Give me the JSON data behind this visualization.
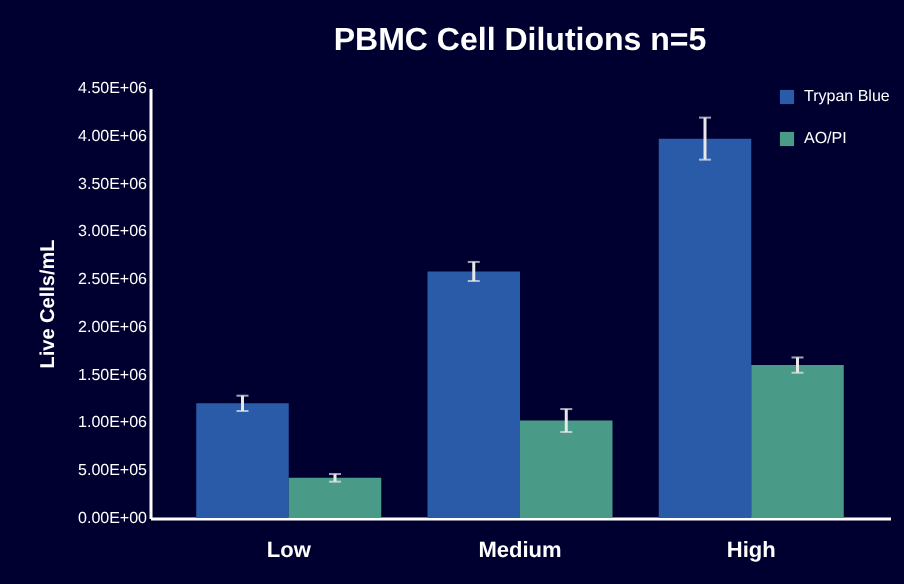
{
  "chart_data": {
    "type": "bar",
    "title": "PBMC Cell Dilutions n=5",
    "ylabel": "Live Cells/mL",
    "categories": [
      "Low",
      "Medium",
      "High"
    ],
    "series": [
      {
        "name": "Trypan Blue",
        "color": "#2a5ba8",
        "values": [
          1200000,
          2580000,
          3970000
        ],
        "errors": [
          80000,
          100000,
          220000
        ]
      },
      {
        "name": "AO/PI",
        "color": "#4a9a88",
        "values": [
          420000,
          1020000,
          1600000
        ],
        "errors": [
          40000,
          120000,
          80000
        ]
      }
    ],
    "ylim": [
      0,
      4500000
    ],
    "yticks": [
      {
        "value": 0,
        "label": "0.00E+00"
      },
      {
        "value": 500000,
        "label": "5.00E+05"
      },
      {
        "value": 1000000,
        "label": "1.00E+06"
      },
      {
        "value": 1500000,
        "label": "1.50E+06"
      },
      {
        "value": 2000000,
        "label": "2.00E+06"
      },
      {
        "value": 2500000,
        "label": "2.50E+06"
      },
      {
        "value": 3000000,
        "label": "3.00E+06"
      },
      {
        "value": 3500000,
        "label": "3.50E+06"
      },
      {
        "value": 4000000,
        "label": "4.00E+06"
      },
      {
        "value": 4500000,
        "label": "4.50E+06"
      }
    ],
    "grid": false,
    "legend": "top right"
  }
}
